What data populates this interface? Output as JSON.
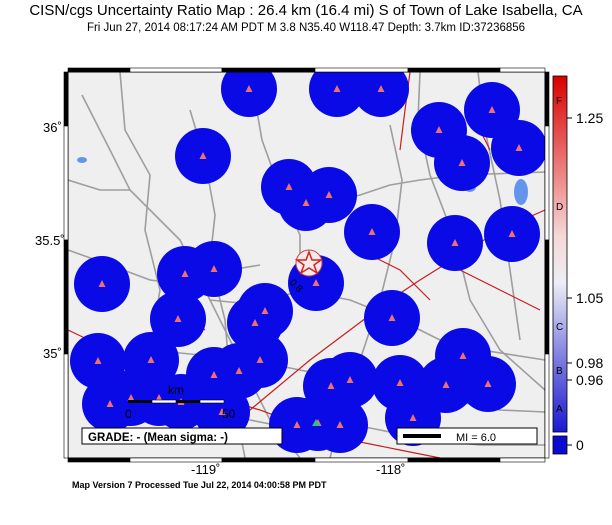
{
  "title": "CISN/cgs Uncertainty Ratio Map : 26.4 km (16.4 mi) S of Town of Lake Isabella, CA",
  "subtitle": "Fri Jun 27, 2014 08:17:24 AM PDT   M 3.8   N35.40 W118.47   Depth: 3.7km   ID:37236856",
  "footer": "Map Version 7 Processed Tue Jul 22, 2014 04:00:58 PM PDT",
  "axes": {
    "lat_labels": [
      "36˚",
      "35.5˚",
      "35˚"
    ],
    "lon_labels": [
      "-119˚",
      "-118˚"
    ]
  },
  "map": {
    "epicenter_ratio_label": "0.8",
    "scale_bar": {
      "label": "km",
      "start": "0",
      "end": "50"
    },
    "grade_box": "GRADE: - (Mean sigma: -)",
    "mi_legend": "MI = 6.0",
    "colors": {
      "station_circle": "#0a0ae6",
      "station_triangle": "#ef7070",
      "background": "#efefef",
      "roads": "#9e9e9e",
      "faults": "#c81e1e",
      "water": "#6495ed"
    }
  },
  "colorbar": {
    "tick_labels": [
      "1.25",
      "1.05",
      "0.98",
      "0.96",
      "0"
    ],
    "grade_letters": [
      "F",
      "D",
      "C",
      "B",
      "A"
    ]
  }
}
